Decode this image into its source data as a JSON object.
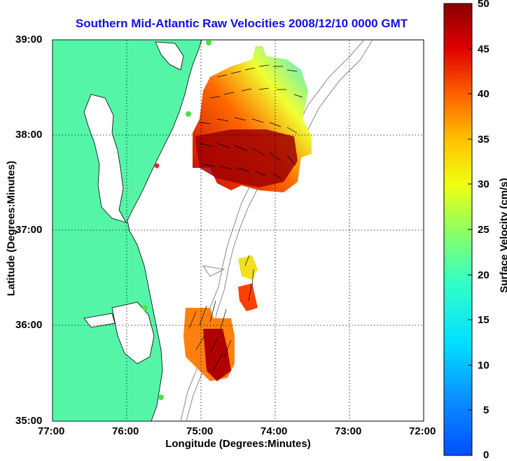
{
  "title": "Southern Mid-Atlantic Raw Velocities 2008/12/10 0000 GMT",
  "xaxis": {
    "label": "Longitude (Degrees:Minutes)",
    "ticks": [
      "77:00",
      "76:00",
      "75:00",
      "74:00",
      "73:00",
      "72:00"
    ]
  },
  "yaxis": {
    "label": "Latitude (Degrees:Minutes)",
    "ticks": [
      "39:00",
      "38:00",
      "37:00",
      "36:00",
      "35:00"
    ]
  },
  "colorbar": {
    "label": "Surface Velocity (cm/s)",
    "ticks": [
      "50",
      "45",
      "40",
      "35",
      "30",
      "25",
      "20",
      "15",
      "10",
      "5",
      "0"
    ],
    "min": 0,
    "max": 50
  },
  "colors": {
    "land": "#55f5a8",
    "title": "#1010e0",
    "station": "#4ce04c",
    "station_red": "#e03030"
  }
}
